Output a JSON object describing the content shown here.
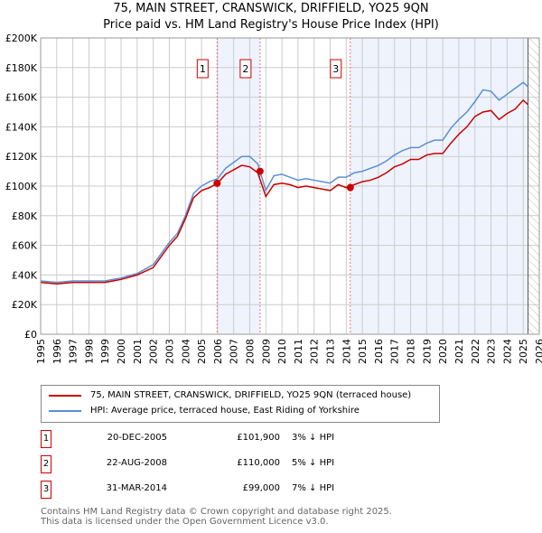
{
  "chart_data": {
    "type": "line",
    "title": "75, MAIN STREET, CRANSWICK, DRIFFIELD, YO25 9QN",
    "subtitle": "Price paid vs. HM Land Registry's House Price Index (HPI)",
    "xlim": [
      1995,
      2026
    ],
    "ylim": [
      0,
      200000
    ],
    "x_ticks": [
      "1995",
      "1996",
      "1997",
      "1998",
      "1999",
      "2000",
      "2001",
      "2002",
      "2003",
      "2004",
      "2005",
      "2006",
      "2007",
      "2008",
      "2009",
      "2010",
      "2011",
      "2012",
      "2013",
      "2014",
      "2015",
      "2016",
      "2017",
      "2018",
      "2019",
      "2020",
      "2021",
      "2022",
      "2023",
      "2024",
      "2025",
      "2026"
    ],
    "y_ticks": [
      {
        "v": 0,
        "label": "£0"
      },
      {
        "v": 20000,
        "label": "£20K"
      },
      {
        "v": 40000,
        "label": "£40K"
      },
      {
        "v": 60000,
        "label": "£60K"
      },
      {
        "v": 80000,
        "label": "£80K"
      },
      {
        "v": 100000,
        "label": "£100K"
      },
      {
        "v": 120000,
        "label": "£120K"
      },
      {
        "v": 140000,
        "label": "£140K"
      },
      {
        "v": 160000,
        "label": "£160K"
      },
      {
        "v": 180000,
        "label": "£180K"
      },
      {
        "v": 200000,
        "label": "£200K"
      }
    ],
    "grid": true,
    "x": [
      1995,
      1996,
      1997,
      1998,
      1999,
      2000,
      2001,
      2002,
      2003,
      2003.5,
      2004,
      2004.5,
      2005,
      2005.5,
      2006,
      2006.5,
      2007,
      2007.5,
      2008,
      2008.5,
      2009,
      2009.5,
      2010,
      2010.5,
      2011,
      2011.5,
      2012,
      2012.5,
      2013,
      2013.5,
      2014,
      2014.5,
      2015,
      2015.5,
      2016,
      2016.5,
      2017,
      2017.5,
      2018,
      2018.5,
      2019,
      2019.5,
      2020,
      2020.5,
      2021,
      2021.5,
      2022,
      2022.5,
      2023,
      2023.5,
      2024,
      2024.5,
      2025,
      2025.3
    ],
    "series": [
      {
        "name": "75, MAIN STREET, CRANSWICK, DRIFFIELD, YO25 9QN (terraced house)",
        "color": "#cc0000",
        "values": [
          35000,
          34000,
          35000,
          35000,
          35000,
          37000,
          40000,
          45000,
          60000,
          66000,
          78000,
          92000,
          97000,
          99000,
          102000,
          108000,
          111000,
          114000,
          113000,
          109000,
          93000,
          101000,
          102000,
          101000,
          99000,
          100000,
          99000,
          98000,
          97000,
          101000,
          99000,
          101000,
          103000,
          104000,
          106000,
          109000,
          113000,
          115000,
          118000,
          118000,
          121000,
          122000,
          122000,
          129000,
          135000,
          140000,
          147000,
          150000,
          151000,
          145000,
          149000,
          152000,
          158000,
          155000
        ]
      },
      {
        "name": "HPI: Average price, terraced house, East Riding of Yorkshire",
        "color": "#5b8fd6",
        "values": [
          36000,
          35000,
          36000,
          36000,
          36000,
          38000,
          41000,
          47000,
          62000,
          68000,
          80000,
          95000,
          100000,
          103000,
          105000,
          112000,
          116000,
          120000,
          120000,
          115000,
          97000,
          107000,
          108000,
          106000,
          104000,
          105000,
          104000,
          103000,
          102000,
          106000,
          106000,
          109000,
          110000,
          112000,
          114000,
          117000,
          121000,
          124000,
          126000,
          126000,
          129000,
          131000,
          131000,
          139000,
          145000,
          150000,
          157000,
          165000,
          164000,
          158000,
          162000,
          166000,
          170000,
          167000
        ]
      }
    ],
    "shaded_ranges": [
      [
        2005.97,
        2008.64
      ],
      [
        2014.25,
        2025.3
      ]
    ],
    "forecast_hatch_from": 2025.3,
    "sales": [
      {
        "id": "1",
        "x": 2005.97,
        "y": 101900,
        "date": "20-DEC-2005",
        "price": "£101,900",
        "hpi": "3% ↓ HPI"
      },
      {
        "id": "2",
        "x": 2008.64,
        "y": 110000,
        "date": "22-AUG-2008",
        "price": "£110,000",
        "hpi": "5% ↓ HPI"
      },
      {
        "id": "3",
        "x": 2014.25,
        "y": 99000,
        "date": "31-MAR-2014",
        "price": "£99,000",
        "hpi": "7% ↓ HPI"
      }
    ],
    "legend": "below"
  },
  "footer": {
    "line1": "Contains HM Land Registry data © Crown copyright and database right 2025.",
    "line2": "This data is licensed under the Open Government Licence v3.0."
  }
}
